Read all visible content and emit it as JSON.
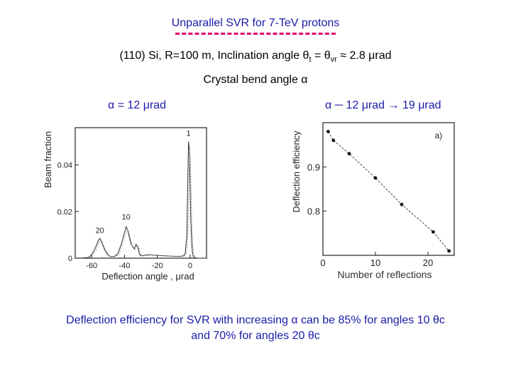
{
  "header": {
    "title": "Unparallel SVR for 7-TeV protons",
    "subtitle_main": "(110) Si, R=100 m, Inclination angle θ",
    "subtitle_sub1": "t",
    "subtitle_mid": " = θ",
    "subtitle_sub2": "vr",
    "subtitle_end": " ≈ 2.8 μrad",
    "bend_label": "Crystal bend angle α",
    "alpha_left": "α = 12 μrad",
    "alpha_right": "α ─ 12 μrad → 19 μrad"
  },
  "caption": {
    "line1": "Deflection efficiency for SVR with increasing α can be 85% for angles 10 θc",
    "line2": "and 70% for angles 20 θc"
  },
  "chart_data": [
    {
      "type": "line",
      "xlabel": "Deflection angle , μrad",
      "ylabel": "Beam fraction",
      "x_ticks": [
        -60,
        -40,
        -20,
        0
      ],
      "y_ticks": [
        0,
        0.02,
        0.04
      ],
      "xlim": [
        -70,
        10
      ],
      "ylim": [
        0,
        0.056
      ],
      "annotations": [
        {
          "text": "20",
          "x": -55,
          "y": 0.0108
        },
        {
          "text": "10",
          "x": -39,
          "y": 0.0166
        },
        {
          "text": "1",
          "x": -1,
          "y": 0.0525
        }
      ],
      "series": [
        {
          "x": [
            -68,
            -62,
            -60,
            -58,
            -56,
            -55,
            -54,
            -52,
            -50,
            -48,
            -46,
            -44,
            -42,
            -40,
            -39,
            -38,
            -36,
            -34,
            -33,
            -32,
            -31,
            -30,
            -25,
            -20,
            -15,
            -10,
            -6,
            -4,
            -3,
            -2,
            -1.5,
            -1,
            -0.5,
            0,
            0.5,
            1,
            1.5,
            2,
            3,
            4,
            6,
            10
          ],
          "y": [
            0,
            0.0003,
            0.0015,
            0.004,
            0.0075,
            0.0085,
            0.007,
            0.0035,
            0.0012,
            0.0006,
            0.0008,
            0.002,
            0.006,
            0.011,
            0.0135,
            0.012,
            0.006,
            0.004,
            0.006,
            0.005,
            0.002,
            0.001,
            0.0015,
            0.0012,
            0.001,
            0.0008,
            0.0008,
            0.001,
            0.002,
            0.01,
            0.03,
            0.05,
            0.047,
            0.03,
            0.015,
            0.006,
            0.002,
            0.0006,
            0.0002,
            0,
            0,
            0
          ]
        }
      ]
    },
    {
      "type": "scatter",
      "xlabel": "Number of reflections",
      "ylabel": "Deflection efficiency",
      "annotations": [
        {
          "text": "a)",
          "x": 22,
          "y": 0.965
        }
      ],
      "x_ticks": [
        0,
        10,
        20
      ],
      "y_ticks": [
        0.8,
        0.9
      ],
      "xlim": [
        0,
        25
      ],
      "ylim": [
        0.7,
        1.0
      ],
      "series": [
        {
          "x": [
            1,
            2,
            5,
            10,
            15,
            21,
            24
          ],
          "y": [
            0.98,
            0.96,
            0.93,
            0.875,
            0.815,
            0.753,
            0.71
          ]
        }
      ]
    }
  ]
}
